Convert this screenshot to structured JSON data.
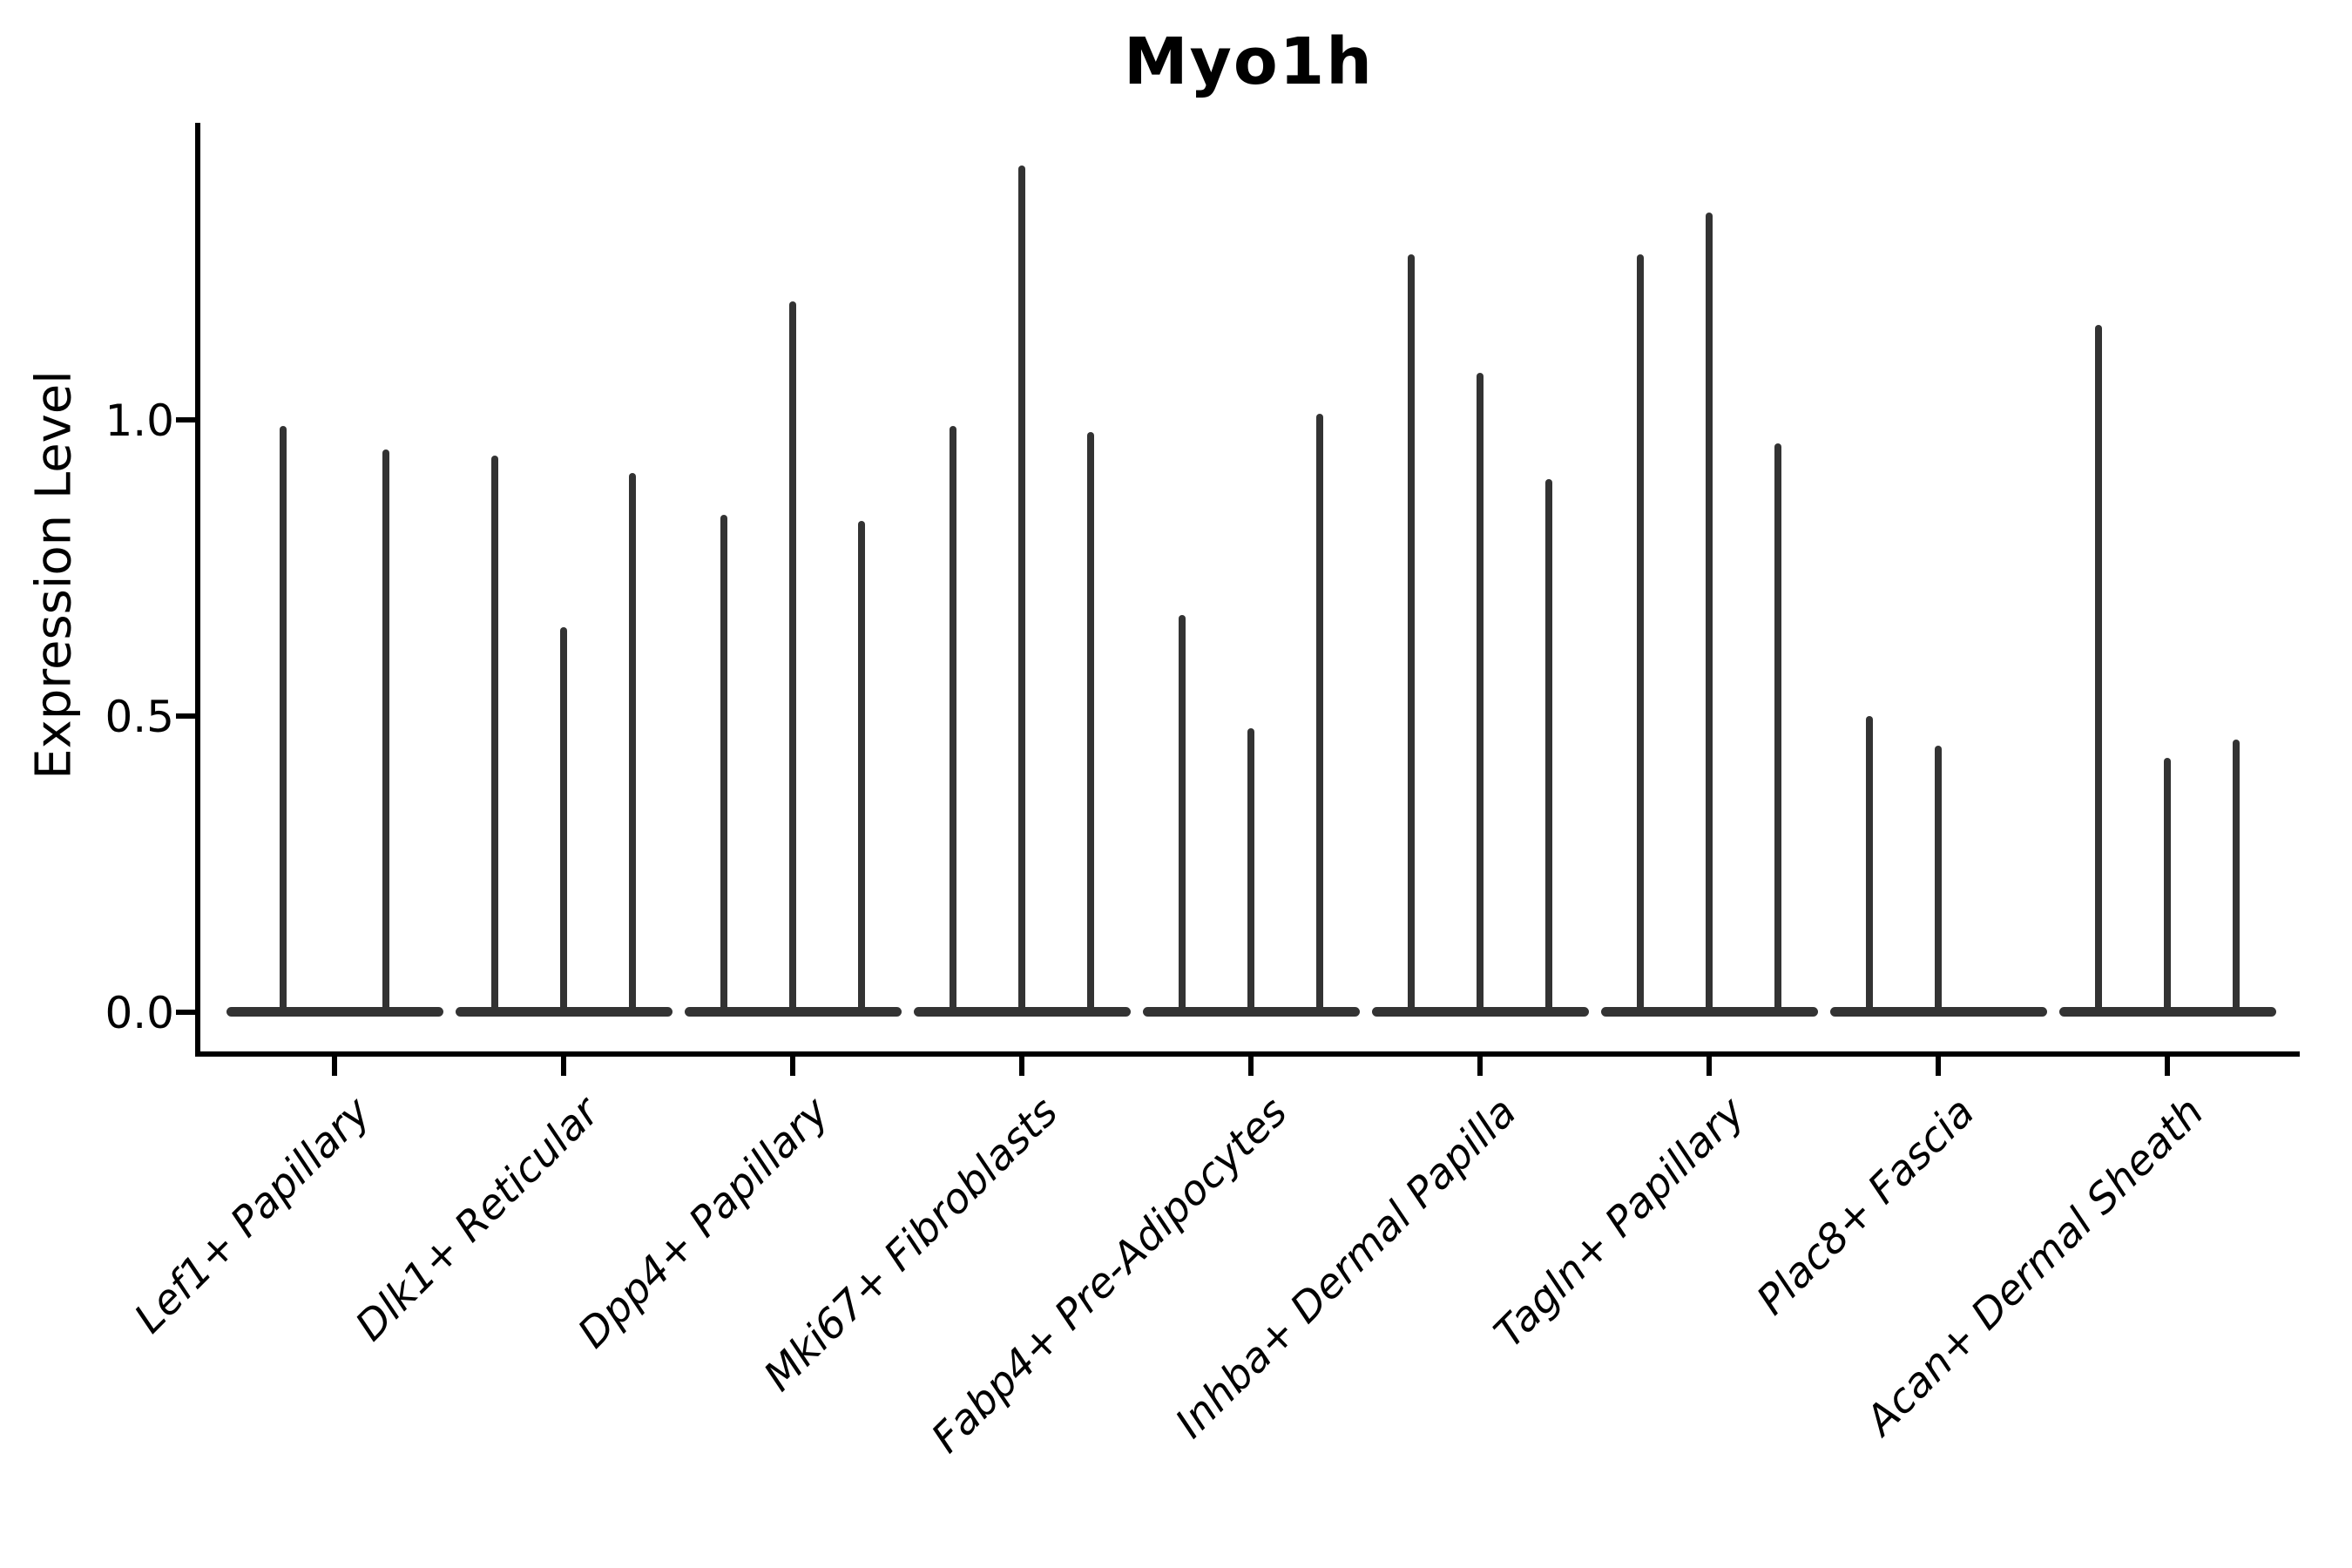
{
  "title": "Myo1h",
  "axes": {
    "ylabel": "Expression Level",
    "ytick_labels": [
      "0.0",
      "0.5",
      "1.0"
    ]
  },
  "colors": {
    "violin": "#333333",
    "axis": "#000000",
    "text": "#000000",
    "background": "#ffffff"
  },
  "chart_data": {
    "type": "violin",
    "title": "Myo1h",
    "xlabel": "",
    "ylabel": "Expression Level",
    "ylim": [
      -0.07,
      1.5
    ],
    "yticks": [
      0.0,
      0.5,
      1.0
    ],
    "ytick_labels": [
      "0.0",
      "0.5",
      "1.0"
    ],
    "grid": false,
    "legend": false,
    "x_label_rotation_deg": 45,
    "categories": [
      "Lef1+ Papillary",
      "Dlk1+ Reticular",
      "Dpp4+ Papillary",
      "Mki67+ Fibroblasts",
      "Fabp4+ Pre-Adipocytes",
      "Inhba+ Dermal Papilla",
      "Tagln+ Papillary",
      "Plac8+ Fascia",
      "Acan+ Dermal Sheath"
    ],
    "series": [
      {
        "category": "Lef1+ Papillary",
        "violin_max_values": [
          0.99,
          0.95
        ]
      },
      {
        "category": "Dlk1+ Reticular",
        "violin_max_values": [
          0.94,
          0.65,
          0.91
        ]
      },
      {
        "category": "Dpp4+ Papillary",
        "violin_max_values": [
          0.84,
          1.2,
          0.83
        ]
      },
      {
        "category": "Mki67+ Fibroblasts",
        "violin_max_values": [
          0.99,
          1.43,
          0.98
        ]
      },
      {
        "category": "Fabp4+ Pre-Adipocytes",
        "violin_max_values": [
          0.67,
          0.48,
          1.01
        ]
      },
      {
        "category": "Inhba+ Dermal Papilla",
        "violin_max_values": [
          1.28,
          1.08,
          0.9
        ]
      },
      {
        "category": "Tagln+ Papillary",
        "violin_max_values": [
          1.28,
          1.35,
          0.96
        ]
      },
      {
        "category": "Plac8+ Fascia",
        "violin_max_values": [
          0.5,
          0.45,
          0.0
        ]
      },
      {
        "category": "Acan+ Dermal Sheath",
        "violin_max_values": [
          1.16,
          0.43,
          0.46
        ]
      }
    ]
  }
}
